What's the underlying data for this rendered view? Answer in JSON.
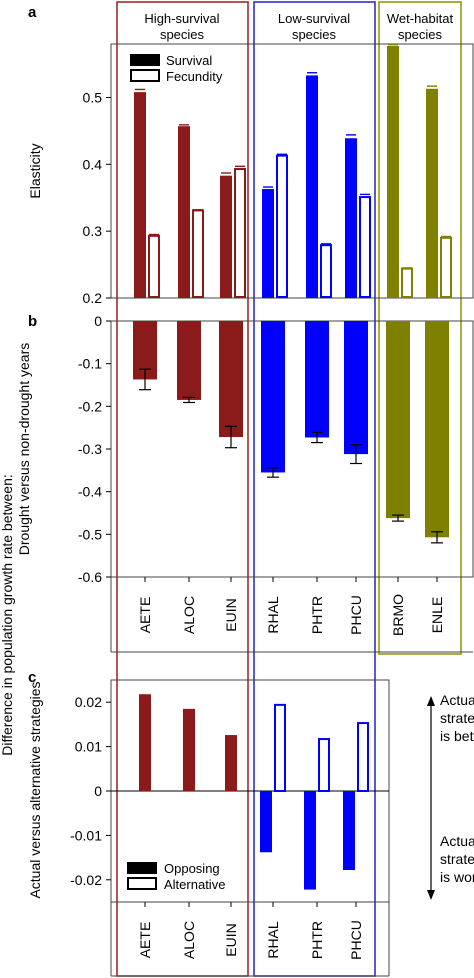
{
  "colors": {
    "high_survival": "#8b1a1a",
    "low_survival": "#0000ff",
    "wet_habitat": "#7f7f00",
    "frame_high": "#a52a2a",
    "frame_low": "#2f2fd0",
    "frame_wet": "#9a9a10"
  },
  "groups": [
    {
      "label_line1": "High-survival",
      "label_line2": "species",
      "species": [
        "AETE",
        "ALOC",
        "EUIN"
      ],
      "color_key": "high_survival"
    },
    {
      "label_line1": "Low-survival",
      "label_line2": "species",
      "species": [
        "RHAL",
        "PHTR",
        "PHCU"
      ],
      "color_key": "low_survival"
    },
    {
      "label_line1": "Wet-habitat",
      "label_line2": "species",
      "species": [
        "BRMO",
        "ENLE"
      ],
      "color_key": "wet_habitat"
    }
  ],
  "shared_ylabel": {
    "line1": "Difference in population growth rate between:",
    "line2": "Drought versus non-drought years",
    "line3": "Actual versus alternative strategies"
  },
  "annotations": {
    "better_line1": "Actual",
    "better_line2": "strategy",
    "better_line3": "is better",
    "worse_line1": "Actual",
    "worse_line2": "strategy",
    "worse_line3": "is worse"
  },
  "chart_data": [
    {
      "panel": "a",
      "type": "bar",
      "ylabel": "Elasticity",
      "ylim": [
        0.2,
        0.58
      ],
      "yticks": [
        0.2,
        0.3,
        0.4,
        0.5
      ],
      "ytick_labels": [
        "0.2",
        "0.3",
        "0.4",
        "0.5"
      ],
      "legend": [
        "Survival",
        "Fecundity"
      ],
      "legend_position": "top-left",
      "categories": [
        "AETE",
        "ALOC",
        "EUIN",
        "RHAL",
        "PHTR",
        "PHCU",
        "BRMO",
        "ENLE"
      ],
      "series": [
        {
          "name": "Survival",
          "fill": "solid",
          "values": [
            0.508,
            0.457,
            0.383,
            0.363,
            0.533,
            0.439,
            0.577,
            0.513
          ],
          "errors": [
            0.004,
            0.002,
            0.004,
            0.003,
            0.004,
            0.005,
            0.002,
            0.004
          ]
        },
        {
          "name": "Fecundity",
          "fill": "open",
          "values": [
            0.293,
            0.331,
            0.393,
            0.413,
            0.279,
            0.351,
            0.244,
            0.29
          ],
          "errors": [
            0.002,
            0.001,
            0.004,
            0.002,
            0.002,
            0.004,
            0.001,
            0.002
          ]
        }
      ]
    },
    {
      "panel": "b",
      "type": "bar",
      "ylim": [
        -0.6,
        0
      ],
      "yticks": [
        0,
        -0.1,
        -0.2,
        -0.3,
        -0.4,
        -0.5,
        -0.6
      ],
      "ytick_labels": [
        "0",
        "-0.1",
        "-0.2",
        "-0.3",
        "-0.4",
        "-0.5",
        "-0.6"
      ],
      "categories": [
        "AETE",
        "ALOC",
        "EUIN",
        "RHAL",
        "PHTR",
        "PHCU",
        "BRMO",
        "ENLE"
      ],
      "values": [
        -0.137,
        -0.185,
        -0.272,
        -0.355,
        -0.273,
        -0.312,
        -0.462,
        -0.507
      ],
      "errors": [
        0.024,
        0.006,
        0.025,
        0.011,
        0.012,
        0.022,
        0.007,
        0.013
      ]
    },
    {
      "panel": "c",
      "type": "bar",
      "ylim": [
        -0.025,
        0.025
      ],
      "yticks": [
        0.02,
        0.01,
        0,
        -0.01,
        -0.02
      ],
      "ytick_labels": [
        "0.02",
        "0.01",
        "0",
        "-0.01",
        "-0.02"
      ],
      "legend": [
        "Opposing",
        "Alternative"
      ],
      "legend_position": "bottom-left",
      "categories": [
        "AETE",
        "ALOC",
        "EUIN",
        "RHAL",
        "PHTR",
        "PHCU"
      ],
      "series": [
        {
          "name": "Opposing",
          "fill": "solid",
          "values": [
            0.0218,
            0.0185,
            0.0126,
            -0.0138,
            -0.0222,
            -0.0178
          ]
        },
        {
          "name": "Alternative",
          "fill": "open",
          "values": [
            null,
            null,
            null,
            0.0194,
            0.0117,
            0.0153
          ]
        }
      ]
    }
  ]
}
